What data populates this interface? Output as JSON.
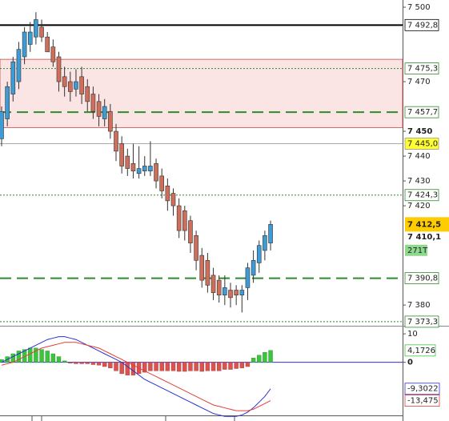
{
  "chart_data": [
    {
      "type": "candlestick",
      "ylim": [
        7372.3,
        7502.9
      ],
      "yticks": [
        {
          "value": 7500,
          "label": "7 500"
        },
        {
          "value": 7470,
          "label": "7 470"
        },
        {
          "value": 7450,
          "label": "7 450"
        },
        {
          "value": 7440,
          "label": "7 440"
        },
        {
          "value": 7430,
          "label": "7 430"
        },
        {
          "value": 7420,
          "label": "7 420"
        },
        {
          "value": 7380,
          "label": "7 380"
        }
      ],
      "up_color": "#3d9bd6",
      "down_color": "#cf6f5b",
      "open": [
        7447,
        7455,
        7465,
        7470,
        7480,
        7485,
        7488,
        7492,
        7488,
        7484,
        7480,
        7472,
        7470,
        7467,
        7472,
        7468,
        7465,
        7462,
        7455,
        7458,
        7450,
        7445,
        7440,
        7437,
        7433,
        7434,
        7434,
        7437,
        7432,
        7428,
        7425,
        7420,
        7418,
        7414,
        7408,
        7400,
        7398,
        7392,
        7390,
        7384,
        7386,
        7386,
        7384,
        7387,
        7392,
        7397,
        7402,
        7405
      ],
      "high": [
        7460,
        7470,
        7480,
        7486,
        7492,
        7494,
        7498,
        7495,
        7490,
        7487,
        7482,
        7476,
        7474,
        7475,
        7476,
        7471,
        7468,
        7465,
        7463,
        7461,
        7453,
        7448,
        7443,
        7445,
        7444,
        7440,
        7446,
        7439,
        7435,
        7431,
        7427,
        7423,
        7420,
        7416,
        7410,
        7403,
        7401,
        7395,
        7392,
        7392,
        7389,
        7388,
        7388,
        7397,
        7402,
        7406,
        7410,
        7414
      ],
      "low": [
        7444,
        7452,
        7462,
        7467,
        7477,
        7482,
        7485,
        7486,
        7482,
        7476,
        7466,
        7464,
        7462,
        7464,
        7461,
        7458,
        7455,
        7452,
        7452,
        7447,
        7438,
        7433,
        7432,
        7431,
        7431,
        7432,
        7432,
        7427,
        7423,
        7418,
        7416,
        7407,
        7406,
        7401,
        7394,
        7387,
        7385,
        7382,
        7381,
        7380,
        7379,
        7380,
        7377,
        7382,
        7389,
        7393,
        7398,
        7402
      ],
      "close": [
        7458,
        7468,
        7478,
        7483,
        7490,
        7490,
        7495,
        7488,
        7482,
        7478,
        7470,
        7468,
        7466,
        7470,
        7465,
        7462,
        7458,
        7456,
        7460,
        7450,
        7442,
        7436,
        7435,
        7434,
        7435,
        7436,
        7436,
        7430,
        7426,
        7422,
        7420,
        7410,
        7410,
        7405,
        7398,
        7390,
        7388,
        7385,
        7384,
        7387,
        7383,
        7384,
        7386,
        7395,
        7398,
        7404,
        7408,
        7412.5
      ],
      "levels": [
        {
          "value": 7492.8,
          "label": "7 492,8",
          "color": "#000000",
          "style": "solid"
        },
        {
          "value": 7475.3,
          "label": "7 475,3",
          "color": "#2e8b2e",
          "style": "dotted"
        },
        {
          "value": 7457.7,
          "label": "7 457,7",
          "color": "#2e8b2e",
          "style": "dashed"
        },
        {
          "value": 7445.0,
          "label": "7 445,0",
          "color": "#aaaaaa",
          "style": "solid",
          "tag_color": "#ffff33"
        },
        {
          "value": 7424.3,
          "label": "7 424,3",
          "color": "#2e8b2e",
          "style": "dotted"
        },
        {
          "value": 7390.8,
          "label": "7 390,8",
          "color": "#2e8b2e",
          "style": "dashed"
        },
        {
          "value": 7373.3,
          "label": "7 373,3",
          "color": "#2e8b2e",
          "style": "dotted"
        }
      ],
      "zones": [
        {
          "from": 7451.5,
          "to": 7479,
          "color": "#fbe4e4"
        }
      ],
      "last_price": {
        "value": 7412.5,
        "label": "7 412,5"
      },
      "bid_price": {
        "value": 7410.1,
        "label": "7 410,1"
      },
      "volume_tag": "271T"
    },
    {
      "type": "macd",
      "ylim": [
        -19.5,
        12
      ],
      "yticks": [
        10,
        0
      ],
      "histogram": [
        1,
        2,
        3,
        4,
        4.5,
        5,
        5,
        4.5,
        4,
        3,
        2,
        0.5,
        -0.3,
        -0.5,
        -0.5,
        -0.5,
        -0.8,
        -1,
        -1.5,
        -2,
        -3,
        -4,
        -4.5,
        -4.5,
        -4,
        -3.5,
        -3,
        -3,
        -3,
        -3,
        -3,
        -3.2,
        -3.2,
        -3,
        -3,
        -3.2,
        -3,
        -3,
        -3,
        -2.5,
        -2.5,
        -2.2,
        -2,
        -1.5,
        1.5,
        2.5,
        3.5,
        4.1726
      ],
      "histogram_label": "4,1726",
      "series": [
        {
          "color": "#2f2fd0",
          "label": "-9,3022",
          "values": [
            0,
            1,
            2,
            3,
            4,
            5,
            6,
            7,
            8,
            8.5,
            9,
            9,
            8.5,
            8,
            7,
            6,
            5,
            4,
            3,
            2,
            1,
            0,
            -1.5,
            -3,
            -4.5,
            -6,
            -7,
            -8,
            -9,
            -10,
            -11,
            -12,
            -13,
            -14,
            -15,
            -16,
            -17,
            -18,
            -18.5,
            -19,
            -19,
            -19,
            -18.5,
            -17.5,
            -16,
            -14,
            -12,
            -9.3022
          ]
        },
        {
          "color": "#e0403a",
          "label": "-13,475",
          "values": [
            -1,
            -0.5,
            0,
            1,
            2,
            3,
            4,
            5,
            5.5,
            6,
            6.5,
            7,
            7,
            7,
            6.5,
            6,
            5.5,
            5,
            4,
            3,
            2,
            1,
            0,
            -1,
            -2,
            -3,
            -4,
            -5,
            -6,
            -7,
            -8,
            -9,
            -10,
            -11,
            -12,
            -13,
            -14,
            -15,
            -15.5,
            -16,
            -16.5,
            -17,
            -17,
            -17,
            -16.5,
            -15.5,
            -14.5,
            -13.475
          ]
        }
      ]
    }
  ]
}
